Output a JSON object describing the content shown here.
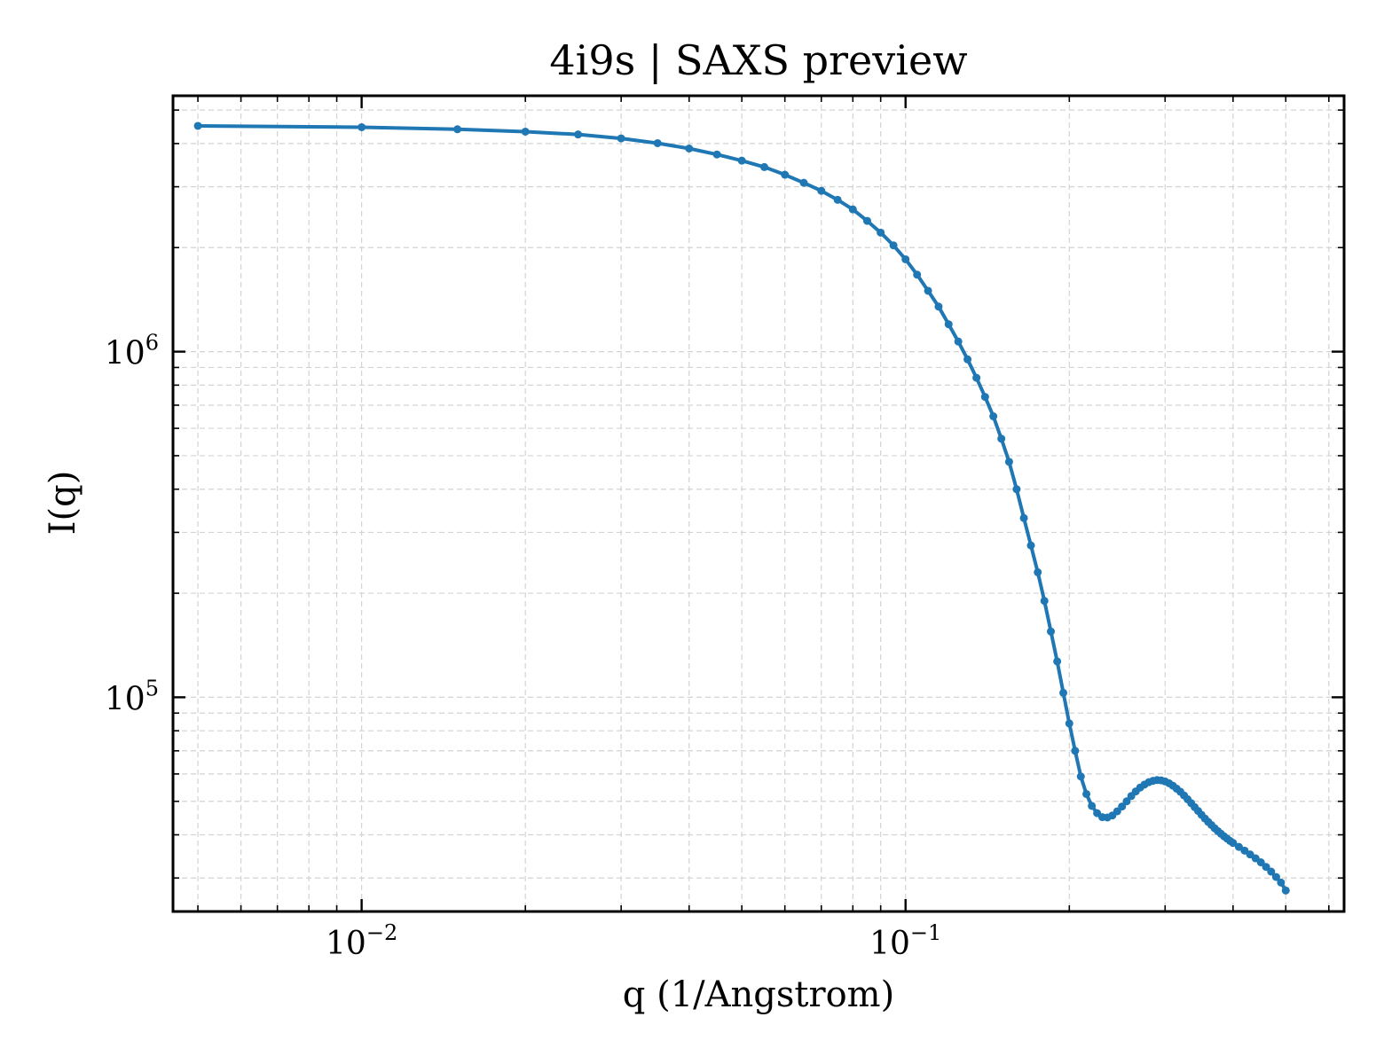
{
  "chart_data": {
    "type": "line",
    "title": "4i9s | SAXS preview",
    "xlabel": "q (1/Angstrom)",
    "ylabel": "I(q)",
    "xscale": "log",
    "yscale": "log",
    "xlim": [
      0.0045,
      0.64
    ],
    "ylim": [
      24000,
      5500000
    ],
    "grid": true,
    "x_tick_labels": [
      {
        "base": "10",
        "exp": "−2",
        "value": 0.01
      },
      {
        "base": "10",
        "exp": "−1",
        "value": 0.1
      }
    ],
    "y_tick_labels": [
      {
        "base": "10",
        "exp": "5",
        "value": 100000
      },
      {
        "base": "10",
        "exp": "6",
        "value": 1000000
      }
    ],
    "colors": {
      "line": "#1f77b4"
    },
    "series": [
      {
        "marker": "dot",
        "points": [
          [
            0.005,
            4500000
          ],
          [
            0.01,
            4460000
          ],
          [
            0.015,
            4400000
          ],
          [
            0.02,
            4330000
          ],
          [
            0.025,
            4250000
          ],
          [
            0.03,
            4140000
          ],
          [
            0.035,
            4010000
          ],
          [
            0.04,
            3870000
          ],
          [
            0.045,
            3720000
          ],
          [
            0.05,
            3570000
          ],
          [
            0.055,
            3420000
          ],
          [
            0.06,
            3250000
          ],
          [
            0.065,
            3080000
          ],
          [
            0.07,
            2920000
          ],
          [
            0.075,
            2750000
          ],
          [
            0.08,
            2580000
          ],
          [
            0.085,
            2390000
          ],
          [
            0.09,
            2210000
          ],
          [
            0.095,
            2030000
          ],
          [
            0.1,
            1850000
          ],
          [
            0.105,
            1670000
          ],
          [
            0.11,
            1500000
          ],
          [
            0.115,
            1350000
          ],
          [
            0.12,
            1200000
          ],
          [
            0.125,
            1070000
          ],
          [
            0.13,
            950000
          ],
          [
            0.135,
            840000
          ],
          [
            0.14,
            740000
          ],
          [
            0.145,
            650000
          ],
          [
            0.15,
            560000
          ],
          [
            0.155,
            480000
          ],
          [
            0.16,
            400000
          ],
          [
            0.165,
            330000
          ],
          [
            0.17,
            275000
          ],
          [
            0.175,
            230000
          ],
          [
            0.18,
            190000
          ],
          [
            0.185,
            155000
          ],
          [
            0.19,
            127000
          ],
          [
            0.195,
            103000
          ],
          [
            0.2,
            84000
          ],
          [
            0.205,
            70000
          ],
          [
            0.21,
            59000
          ],
          [
            0.215,
            52500
          ],
          [
            0.22,
            48500
          ],
          [
            0.225,
            46200
          ],
          [
            0.23,
            45000
          ],
          [
            0.235,
            44900
          ],
          [
            0.24,
            45500
          ],
          [
            0.245,
            46800
          ],
          [
            0.25,
            48300
          ],
          [
            0.255,
            50000
          ],
          [
            0.26,
            51800
          ],
          [
            0.265,
            53400
          ],
          [
            0.27,
            54800
          ],
          [
            0.275,
            55900
          ],
          [
            0.28,
            56800
          ],
          [
            0.285,
            57300
          ],
          [
            0.29,
            57600
          ],
          [
            0.295,
            57500
          ],
          [
            0.3,
            57100
          ],
          [
            0.305,
            56400
          ],
          [
            0.31,
            55500
          ],
          [
            0.315,
            54400
          ],
          [
            0.32,
            53300
          ],
          [
            0.325,
            52000
          ],
          [
            0.33,
            50700
          ],
          [
            0.335,
            49400
          ],
          [
            0.34,
            48100
          ],
          [
            0.345,
            46900
          ],
          [
            0.35,
            45700
          ],
          [
            0.355,
            44600
          ],
          [
            0.36,
            43600
          ],
          [
            0.365,
            42700
          ],
          [
            0.37,
            41800
          ],
          [
            0.375,
            41000
          ],
          [
            0.38,
            40300
          ],
          [
            0.385,
            39600
          ],
          [
            0.39,
            39000
          ],
          [
            0.395,
            38400
          ],
          [
            0.4,
            37900
          ],
          [
            0.41,
            36900
          ],
          [
            0.42,
            36000
          ],
          [
            0.43,
            35100
          ],
          [
            0.44,
            34200
          ],
          [
            0.45,
            33300
          ],
          [
            0.46,
            32300
          ],
          [
            0.47,
            31300
          ],
          [
            0.48,
            30200
          ],
          [
            0.49,
            29100
          ],
          [
            0.5,
            27600
          ]
        ]
      }
    ]
  }
}
